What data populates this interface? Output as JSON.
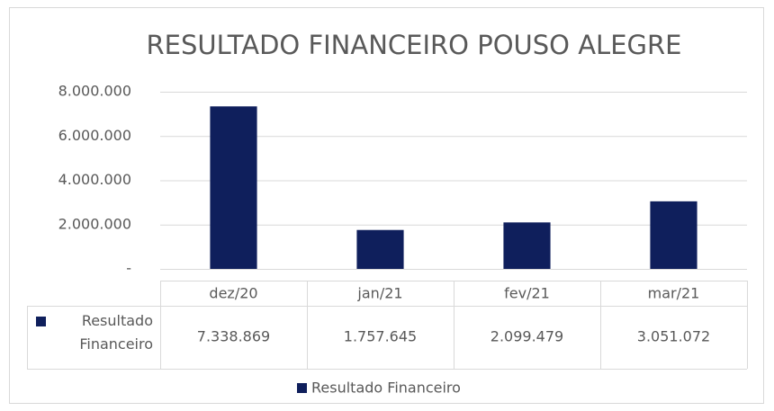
{
  "chart_data": {
    "type": "bar",
    "title": "RESULTADO FINANCEIRO POUSO ALEGRE",
    "categories": [
      "dez/20",
      "jan/21",
      "fev/21",
      "mar/21"
    ],
    "series": [
      {
        "name": "Resultado Financeiro",
        "color": "#0f1f5c",
        "values": [
          7338869,
          1757645,
          2099479,
          3051072
        ],
        "value_labels": [
          "7.338.869",
          "1.757.645",
          "2.099.479",
          "3.051.072"
        ]
      }
    ],
    "ylim": [
      0,
      8000000
    ],
    "yticks": [
      {
        "value": 0,
        "label": "-"
      },
      {
        "value": 2000000,
        "label": "2.000.000"
      },
      {
        "value": 4000000,
        "label": "4.000.000"
      },
      {
        "value": 6000000,
        "label": "6.000.000"
      },
      {
        "value": 8000000,
        "label": "8.000.000"
      }
    ],
    "grid": true,
    "legend": "bottom"
  }
}
